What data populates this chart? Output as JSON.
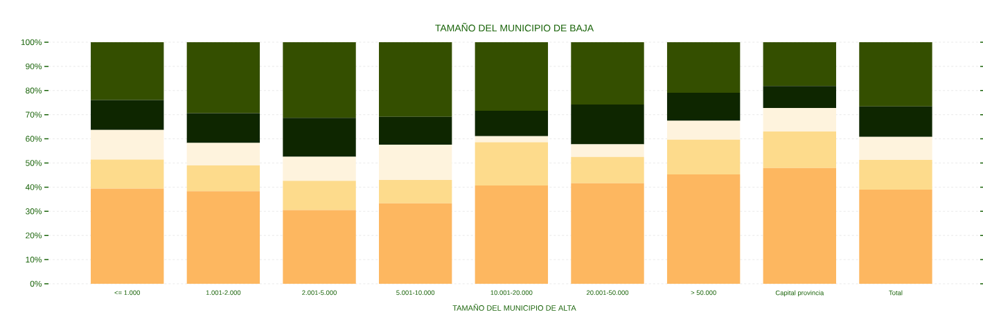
{
  "chart_data": {
    "type": "bar",
    "stacked": true,
    "title": "TAMAÑO DEL MUNICIPIO DE BAJA",
    "xlabel": "TAMAÑO DEL MUNICIPIO DE ALTA",
    "categories": [
      "<= 1.000",
      "1.001-2.000",
      "2.001-5.000",
      "5.001-10.000",
      "10.001-20.000",
      "20.001-50.000",
      "> 50.000",
      "Capital provincia",
      "Total"
    ],
    "series": [
      {
        "color": "#fdb760",
        "values": [
          39.4,
          38.3,
          30.5,
          33.3,
          40.7,
          41.6,
          45.3,
          47.9,
          39.0
        ]
      },
      {
        "color": "#fddb8c",
        "values": [
          12.0,
          10.7,
          12.1,
          9.7,
          17.9,
          10.9,
          14.4,
          15.1,
          12.3
        ]
      },
      {
        "color": "#fef3dd",
        "values": [
          12.3,
          9.3,
          10.0,
          14.6,
          2.5,
          5.2,
          7.8,
          9.8,
          9.5
        ]
      },
      {
        "color": "#0e2600",
        "values": [
          12.4,
          12.3,
          16.1,
          11.5,
          10.5,
          16.5,
          11.6,
          9.1,
          12.6
        ]
      },
      {
        "color": "#344f00",
        "values": [
          23.9,
          29.4,
          31.3,
          30.9,
          28.4,
          25.8,
          20.9,
          18.1,
          26.6
        ]
      }
    ],
    "ylim": [
      0,
      100
    ],
    "yticks": [
      {
        "value": 0,
        "label": "0%"
      },
      {
        "value": 10,
        "label": "10%"
      },
      {
        "value": 20,
        "label": "20%"
      },
      {
        "value": 30,
        "label": "30%"
      },
      {
        "value": 40,
        "label": "40%"
      },
      {
        "value": 50,
        "label": "50%"
      },
      {
        "value": 60,
        "label": "60%"
      },
      {
        "value": 70,
        "label": "70%"
      },
      {
        "value": 80,
        "label": "80%"
      },
      {
        "value": 90,
        "label": "90%"
      },
      {
        "value": 100,
        "label": "100%"
      }
    ],
    "grid": "y",
    "legend": false
  }
}
